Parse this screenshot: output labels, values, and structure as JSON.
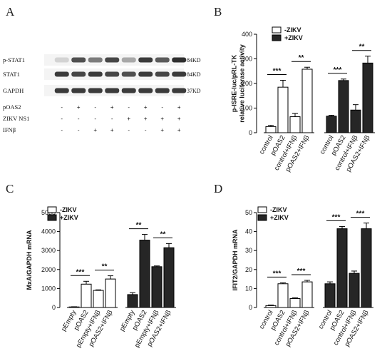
{
  "panel_labels": {
    "a": "A",
    "b": "B",
    "c": "C",
    "d": "D"
  },
  "blot": {
    "rows": [
      {
        "label": "p-STAT1",
        "kd": "84KD"
      },
      {
        "label": "STAT1",
        "kd": "84KD"
      },
      {
        "label": "GAPDH",
        "kd": "37KD"
      }
    ],
    "conditions": [
      {
        "label": "pOAS2",
        "signs": [
          "-",
          "+",
          "-",
          "+",
          "-",
          "+",
          "-",
          "+"
        ]
      },
      {
        "label": "ZIKV NS1",
        "signs": [
          "-",
          "-",
          "-",
          "-",
          "+",
          "+",
          "+",
          "+"
        ]
      },
      {
        "label": "IFNβ",
        "signs": [
          "-",
          "-",
          "+",
          "+",
          "-",
          "-",
          "+",
          "+"
        ]
      }
    ],
    "band_intensity": {
      "p-STAT1": [
        0.15,
        0.75,
        0.55,
        0.8,
        0.35,
        0.85,
        0.7,
        0.9
      ],
      "STAT1": [
        0.85,
        0.8,
        0.85,
        0.8,
        0.75,
        0.85,
        0.8,
        0.85
      ],
      "GAPDH": [
        0.85,
        0.85,
        0.85,
        0.85,
        0.85,
        0.85,
        0.85,
        0.85
      ]
    },
    "colors": {
      "background": "#f4f4f4",
      "band": "#1a1a1a"
    }
  },
  "legend": {
    "neg": "-ZIKV",
    "pos": "+ZIKV"
  },
  "colors": {
    "open_bar": "#ffffff",
    "filled_bar": "#262626",
    "axis": "#000000"
  },
  "chart_data": [
    {
      "id": "B",
      "type": "bar",
      "ylabel": "p-ISRE-luc/pRL-TK\nrelative luciferase activity",
      "ylim": [
        0,
        400
      ],
      "yticks": [
        0,
        100,
        200,
        300,
        400
      ],
      "categories": [
        "control",
        "pOAS2",
        "control+IFNβ",
        "pOAS2+IFNβ"
      ],
      "series": [
        {
          "name": "-ZIKV",
          "values": [
            25,
            185,
            65,
            258
          ],
          "errors": [
            5,
            28,
            13,
            8
          ]
        },
        {
          "name": "+ZIKV",
          "values": [
            67,
            212,
            92,
            283
          ],
          "errors": [
            4,
            6,
            22,
            28
          ]
        }
      ],
      "significance": [
        {
          "series": 0,
          "from": 0,
          "to": 1,
          "label": "***"
        },
        {
          "series": 0,
          "from": 2,
          "to": 3,
          "label": "**"
        },
        {
          "series": 1,
          "from": 0,
          "to": 1,
          "label": "***"
        },
        {
          "series": 1,
          "from": 2,
          "to": 3,
          "label": "**"
        }
      ]
    },
    {
      "id": "C",
      "type": "bar",
      "ylabel": "MxA/GAPDH mRNA",
      "ylim": [
        0,
        5000
      ],
      "yticks": [
        0,
        1000,
        2000,
        3000,
        4000,
        5000
      ],
      "categories": [
        "pEmpty",
        "pOAS2",
        "pEmpty+IFNβ",
        "pOAS2+IFNβ"
      ],
      "series": [
        {
          "name": "-ZIKV",
          "values": [
            30,
            1230,
            900,
            1500
          ],
          "errors": [
            10,
            150,
            30,
            170
          ]
        },
        {
          "name": "+ZIKV",
          "values": [
            680,
            3550,
            2150,
            3150
          ],
          "errors": [
            100,
            300,
            40,
            220
          ]
        }
      ],
      "significance": [
        {
          "series": 0,
          "from": 0,
          "to": 1,
          "label": "***"
        },
        {
          "series": 0,
          "from": 2,
          "to": 3,
          "label": "**"
        },
        {
          "series": 1,
          "from": 0,
          "to": 1,
          "label": "**"
        },
        {
          "series": 1,
          "from": 2,
          "to": 3,
          "label": "**"
        }
      ]
    },
    {
      "id": "D",
      "type": "bar",
      "ylabel": "IFIT2/GAPDH mRNA",
      "ylim": [
        0,
        50
      ],
      "yticks": [
        0,
        10,
        20,
        30,
        40,
        50
      ],
      "categories": [
        "control",
        "pOAS2",
        "control+IFNβ",
        "pOAS2+IFNβ"
      ],
      "series": [
        {
          "name": "-ZIKV",
          "values": [
            1,
            12.5,
            4.7,
            13.5
          ],
          "errors": [
            0.3,
            0.5,
            0.4,
            0.8
          ]
        },
        {
          "name": "+ZIKV",
          "values": [
            12.5,
            41.5,
            18,
            41.5
          ],
          "errors": [
            1,
            1.2,
            1.2,
            3
          ]
        }
      ],
      "significance": [
        {
          "series": 0,
          "from": 0,
          "to": 1,
          "label": "***"
        },
        {
          "series": 0,
          "from": 2,
          "to": 3,
          "label": "***"
        },
        {
          "series": 1,
          "from": 0,
          "to": 1,
          "label": "***"
        },
        {
          "series": 1,
          "from": 2,
          "to": 3,
          "label": "***"
        }
      ]
    }
  ]
}
